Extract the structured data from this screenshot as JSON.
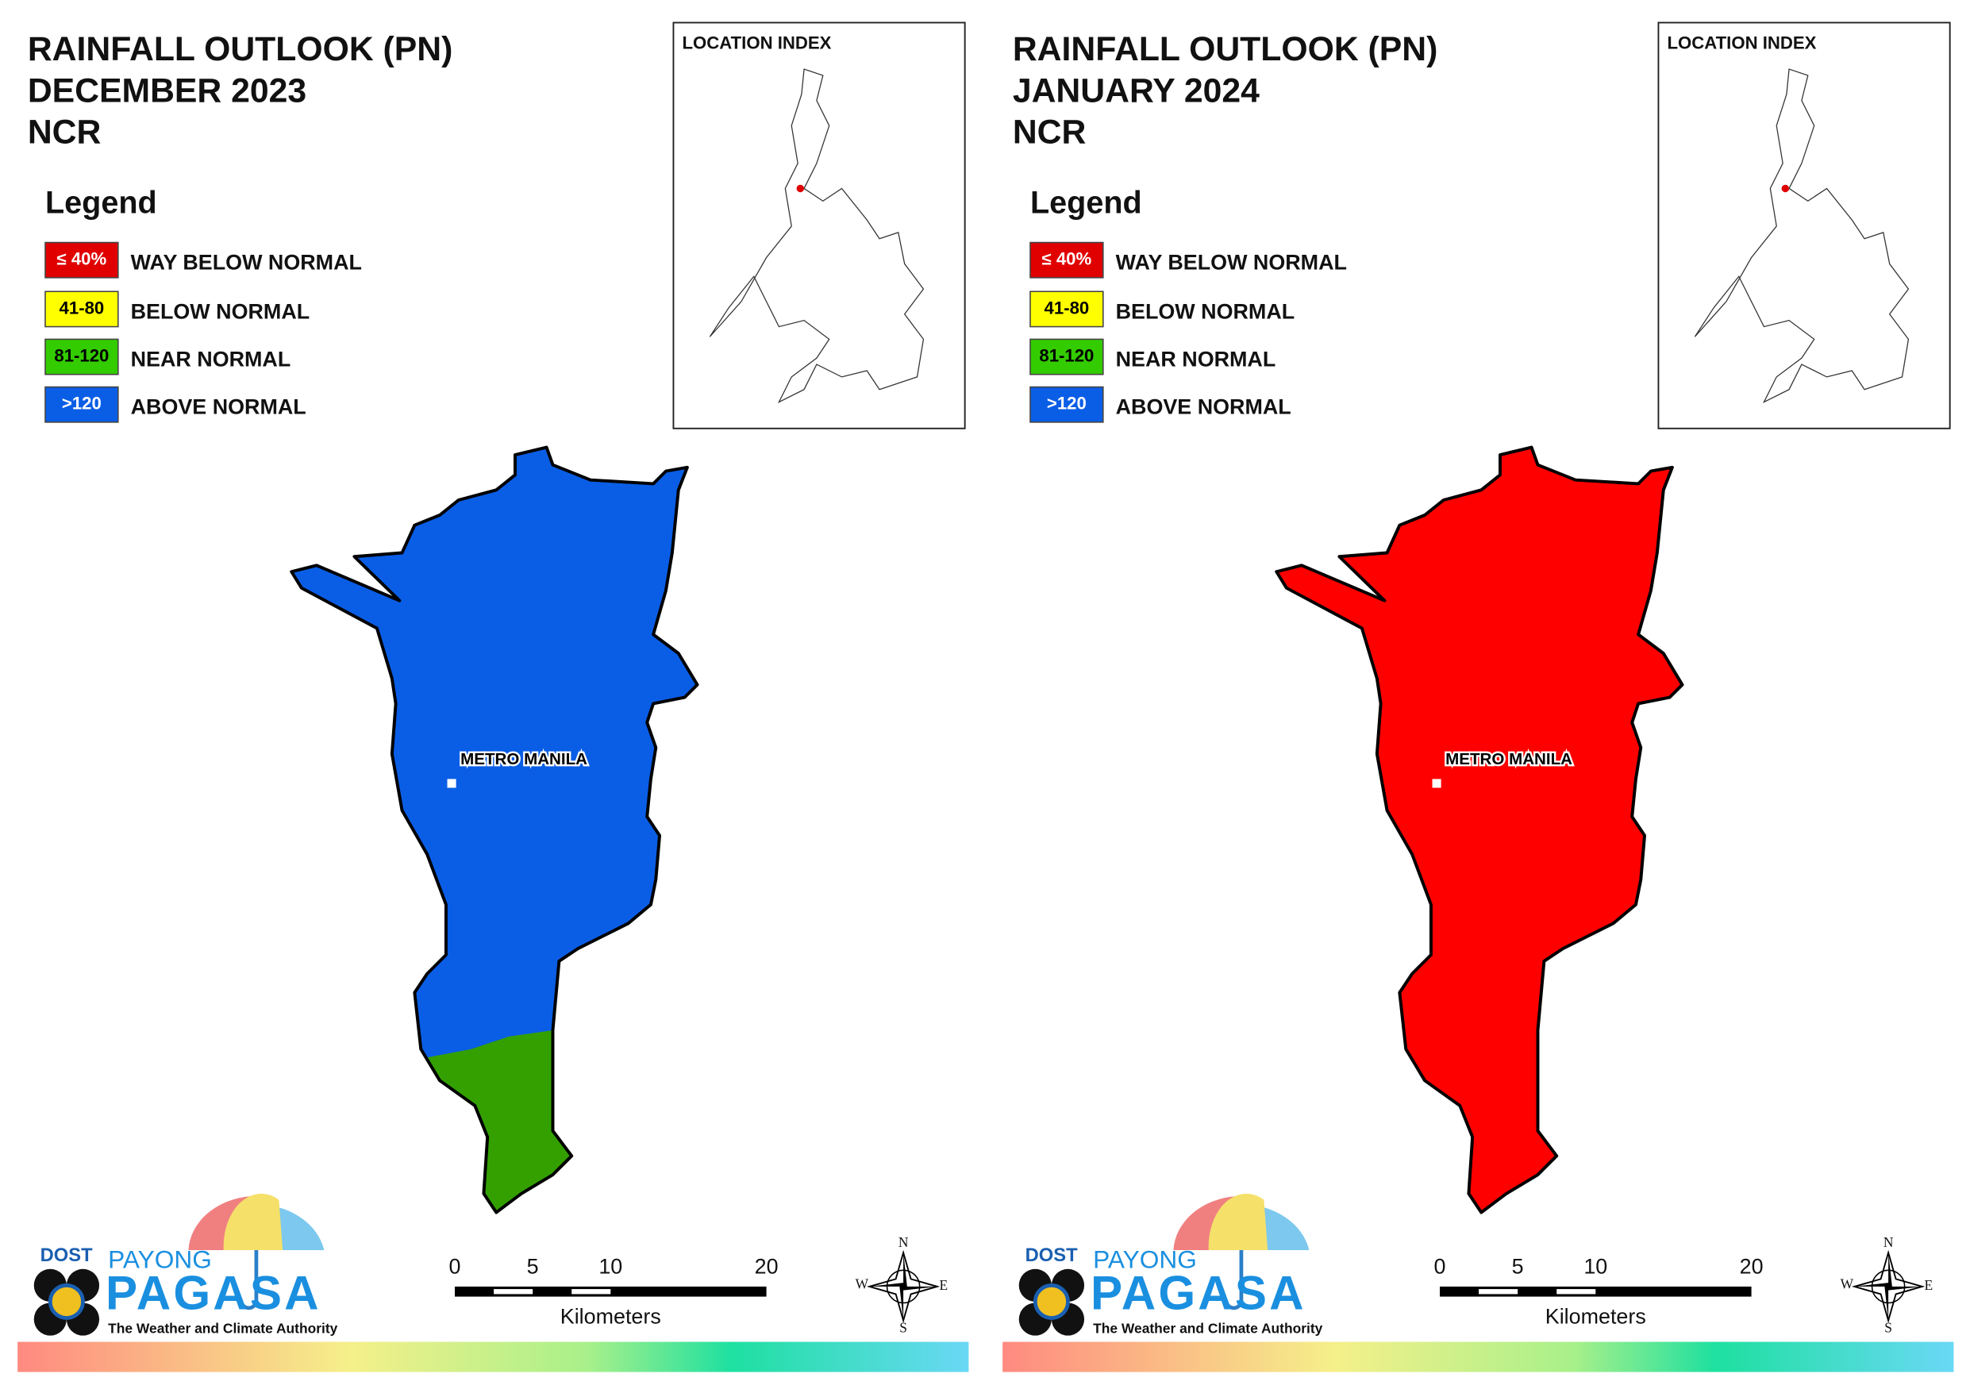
{
  "panels": [
    {
      "title": [
        "RAINFALL OUTLOOK (PN)",
        "DECEMBER 2023",
        "NCR"
      ],
      "location_index": "LOCATION INDEX",
      "map_label": "METRO MANILA"
    },
    {
      "title": [
        "RAINFALL OUTLOOK (PN)",
        "JANUARY 2024",
        "NCR"
      ],
      "location_index": "LOCATION INDEX",
      "map_label": "METRO MANILA"
    }
  ],
  "legend": {
    "title": "Legend",
    "items": [
      {
        "code": "≤ 40%",
        "label": "WAY BELOW NORMAL",
        "color": "#e00000"
      },
      {
        "code": "41-80",
        "label": "BELOW NORMAL",
        "color": "#ffff00"
      },
      {
        "code": "81-120",
        "label": "NEAR NORMAL",
        "color": "#33cc00"
      },
      {
        "code": ">120",
        "label": "ABOVE NORMAL",
        "color": "#0a5ee6"
      }
    ]
  },
  "scale_bar": {
    "ticks": [
      0,
      5,
      10,
      20
    ],
    "unit": "Kilometers"
  },
  "compass": {
    "n": "N",
    "e": "E",
    "s": "S",
    "w": "W"
  },
  "logo": {
    "dost": "DOST",
    "payong": "PAYONG",
    "pagasa": "PAGASA",
    "tagline": "The Weather and Climate Authority"
  }
}
